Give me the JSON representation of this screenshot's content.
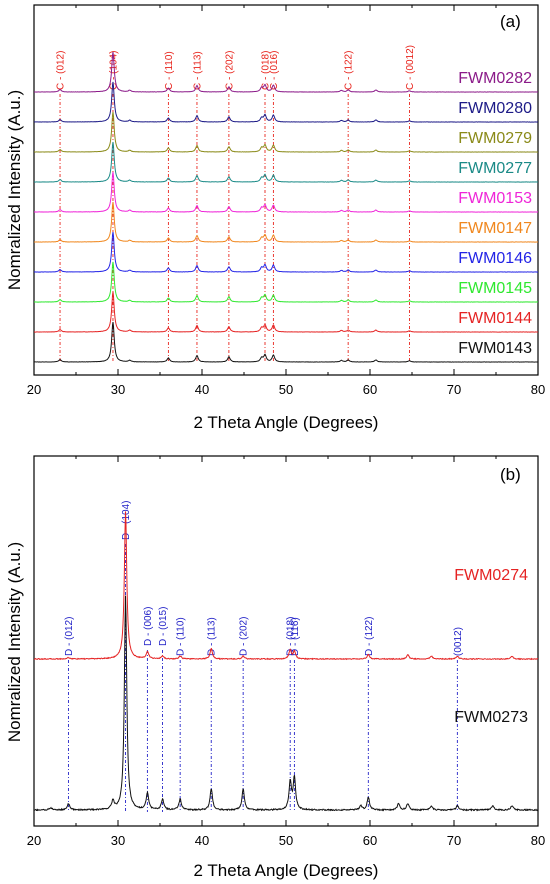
{
  "chart_data": [
    {
      "type": "line",
      "panel_label": "(a)",
      "xlabel": "2 Theta Angle (Degrees)",
      "ylabel": "Nomralized Intensity (A.u.)",
      "xlim": [
        20,
        80
      ],
      "x_ticks": [
        "20",
        "30",
        "40",
        "50",
        "60",
        "70",
        "80"
      ],
      "reference_peaks": [
        {
          "label": "C - (012)",
          "x": 23.1
        },
        {
          "label": "C - (104)",
          "x": 29.4
        },
        {
          "label": "C - (110)",
          "x": 36.0
        },
        {
          "label": "C - (113)",
          "x": 39.4
        },
        {
          "label": "C - (202)",
          "x": 43.2
        },
        {
          "label": "C - (018)",
          "x": 47.5
        },
        {
          "label": "C - (016)",
          "x": 48.5
        },
        {
          "label": "C - (122)",
          "x": 57.4
        },
        {
          "label": "C - (0012)",
          "x": 64.7
        }
      ],
      "reference_color": "#e8241c",
      "peaks_x": [
        23.1,
        29.4,
        31.4,
        36.0,
        39.4,
        43.2,
        47.1,
        47.5,
        48.5,
        56.6,
        57.4,
        60.7,
        64.7
      ],
      "peak_heights": [
        0.06,
        1.0,
        0.04,
        0.1,
        0.16,
        0.13,
        0.1,
        0.17,
        0.17,
        0.04,
        0.05,
        0.05,
        0.03
      ],
      "series": [
        {
          "name": "FWM0282",
          "color": "#8b1a89"
        },
        {
          "name": "FWM0280",
          "color": "#1c1a87"
        },
        {
          "name": "FWM0279",
          "color": "#8a8a18"
        },
        {
          "name": "FWM0277",
          "color": "#1a8a87"
        },
        {
          "name": "FWM0153",
          "color": "#ef25d8"
        },
        {
          "name": "FWM0147",
          "color": "#f0871e"
        },
        {
          "name": "FWM0146",
          "color": "#2323e6"
        },
        {
          "name": "FWM0145",
          "color": "#2fe82f"
        },
        {
          "name": "FWM0144",
          "color": "#e52323"
        },
        {
          "name": "FWM0143",
          "color": "#111111"
        }
      ]
    },
    {
      "type": "line",
      "panel_label": "(b)",
      "xlabel": "2 Theta Angle (Degrees)",
      "ylabel": "Nomralized Intensity (A.u.)",
      "xlim": [
        20,
        80
      ],
      "x_ticks": [
        "20",
        "30",
        "40",
        "50",
        "60",
        "70",
        "80"
      ],
      "reference_peaks": [
        {
          "label": "D - (012)",
          "x": 24.1
        },
        {
          "label": "D - (104)",
          "x": 30.9
        },
        {
          "label": "D - (006)",
          "x": 33.5
        },
        {
          "label": "D - (015)",
          "x": 35.3
        },
        {
          "label": "D - (110)",
          "x": 37.4
        },
        {
          "label": "D - (113)",
          "x": 41.1
        },
        {
          "label": "D - (202)",
          "x": 44.9
        },
        {
          "label": "D - (018)",
          "x": 50.5
        },
        {
          "label": "D - (116)",
          "x": 51.0
        },
        {
          "label": "D - (122)",
          "x": 59.8
        },
        {
          "label": "(0012)",
          "x": 70.4
        }
      ],
      "reference_color": "#2323c8",
      "series": [
        {
          "name": "FWM0274",
          "color": "#e52323",
          "peaks_x": [
            24.1,
            30.9,
            33.5,
            35.3,
            37.4,
            41.1,
            44.9,
            50.5,
            51.0,
            59.8,
            64.5,
            67.3,
            70.4,
            76.9
          ],
          "peak_heights": [
            0.01,
            1.0,
            0.05,
            0.02,
            0.02,
            0.07,
            0.02,
            0.06,
            0.05,
            0.03,
            0.03,
            0.02,
            0.02,
            0.02
          ]
        },
        {
          "name": "FWM0273",
          "color": "#111111",
          "peaks_x": [
            22.0,
            24.1,
            29.4,
            30.9,
            33.5,
            35.3,
            37.4,
            41.1,
            44.9,
            50.5,
            51.0,
            58.9,
            59.8,
            63.4,
            64.5,
            67.3,
            70.4,
            74.6,
            76.9
          ],
          "peak_heights": [
            0.01,
            0.03,
            0.04,
            1.0,
            0.08,
            0.05,
            0.05,
            0.1,
            0.1,
            0.13,
            0.15,
            0.02,
            0.06,
            0.03,
            0.03,
            0.02,
            0.02,
            0.02,
            0.02
          ]
        }
      ]
    }
  ]
}
